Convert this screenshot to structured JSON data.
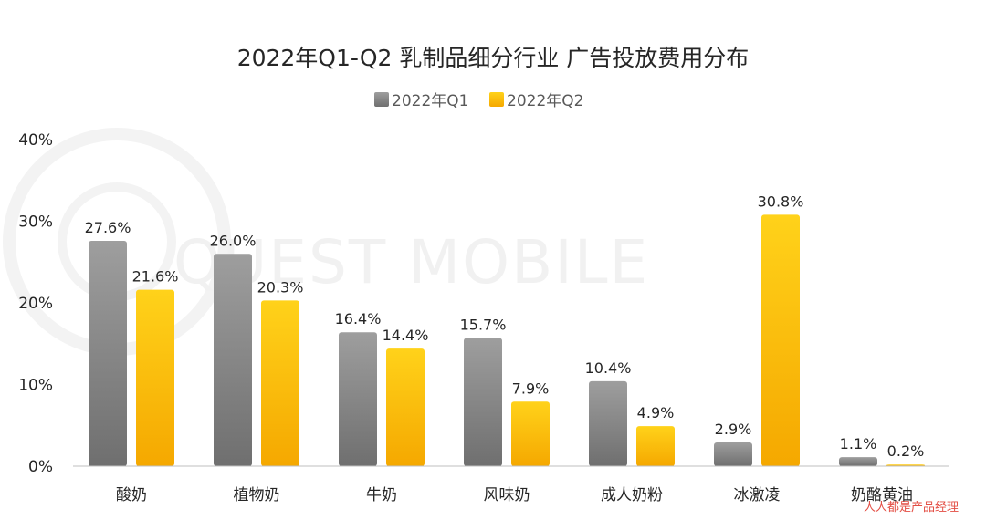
{
  "chart_data": {
    "type": "bar",
    "title": "2022年Q1-Q2 乳制品细分行业 广告投放费用分布",
    "categories": [
      "酸奶",
      "植物奶",
      "牛奶",
      "风味奶",
      "成人奶粉",
      "冰激凌",
      "奶酪黄油"
    ],
    "series": [
      {
        "name": "2022年Q1",
        "values": [
          27.6,
          26.0,
          16.4,
          15.7,
          10.4,
          2.9,
          1.1
        ],
        "labels": [
          "27.6%",
          "26.0%",
          "16.4%",
          "15.7%",
          "10.4%",
          "2.9%",
          "1.1%"
        ]
      },
      {
        "name": "2022年Q2",
        "values": [
          21.6,
          20.3,
          14.4,
          7.9,
          4.9,
          30.8,
          0.2
        ],
        "labels": [
          "21.6%",
          "20.3%",
          "14.4%",
          "7.9%",
          "4.9%",
          "30.8%",
          "0.2%"
        ]
      }
    ],
    "ylim": [
      0,
      40
    ],
    "yticks": [
      "0%",
      "10%",
      "20%",
      "30%",
      "40%"
    ],
    "legend_position": "top-center",
    "grid": false
  },
  "colors": {
    "q1_top": "#9e9e9e",
    "q1_bottom": "#6f6f6f",
    "q2_top": "#ffd21a",
    "q2_bottom": "#f5a800"
  },
  "watermark": {
    "text": "QUEST MOBILE",
    "badge": "人人都是产品经理"
  }
}
